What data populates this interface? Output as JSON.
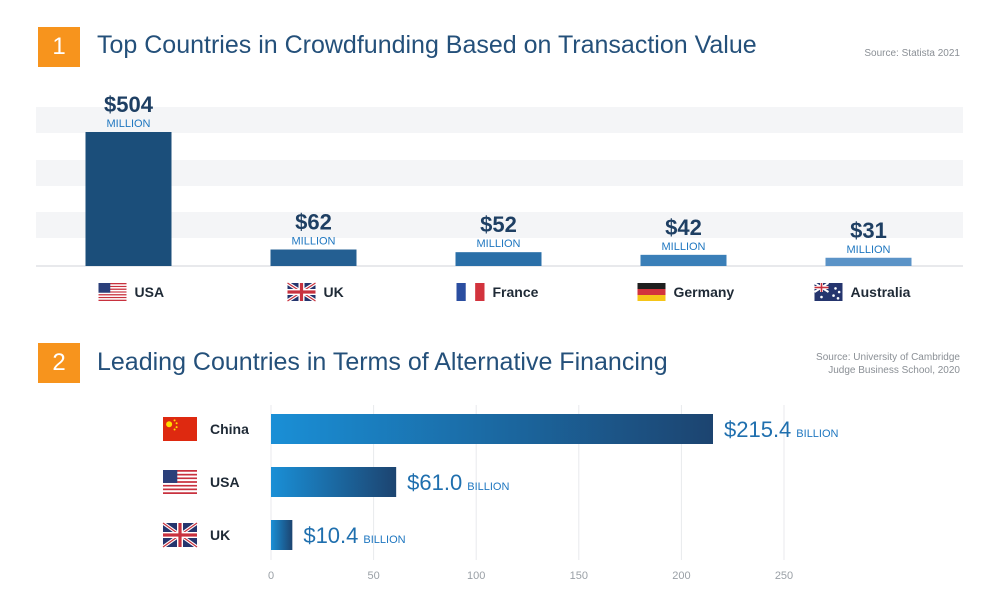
{
  "section1": {
    "number": "1",
    "title": "Top Countries in Crowdfunding Based on Transaction Value",
    "source": "Source: Statista 2021"
  },
  "section2": {
    "number": "2",
    "title": "Leading Countries in Terms of Alternative Financing",
    "source_lines": [
      "Source: University of Cambridge",
      "Judge Business School, 2020"
    ]
  },
  "colors": {
    "accent_orange": "#f7941d",
    "title_blue": "#24507a",
    "bar_dark": "#1b4e7a",
    "bar_mid": "#2a6fa8",
    "bar_light": "#5b93c7",
    "label_blue": "#1f77c0"
  },
  "chart_data": [
    {
      "type": "bar",
      "title": "Top Countries in Crowdfunding Based on Transaction Value",
      "categories": [
        "USA",
        "UK",
        "France",
        "Germany",
        "Australia"
      ],
      "values": [
        504,
        62,
        52,
        42,
        31
      ],
      "value_labels": [
        "$504",
        "$62",
        "$52",
        "$42",
        "$31"
      ],
      "unit_label": "MILLION",
      "flag_icons": [
        "usa-flag-icon",
        "uk-flag-icon",
        "france-flag-icon",
        "germany-flag-icon",
        "australia-flag-icon"
      ],
      "ylim": [
        0,
        504
      ],
      "grid": true
    },
    {
      "type": "bar",
      "orientation": "horizontal",
      "title": "Leading Countries in Terms of Alternative Financing",
      "categories": [
        "China",
        "USA",
        "UK"
      ],
      "values": [
        215.4,
        61.0,
        10.4
      ],
      "value_labels": [
        "$215.4",
        "$61.0",
        "$10.4"
      ],
      "unit_label": "BILLION",
      "flag_icons": [
        "china-flag-icon",
        "usa-flag-icon",
        "uk-flag-icon"
      ],
      "xlim": [
        0,
        250
      ],
      "xticks": [
        "0",
        "50",
        "100",
        "150",
        "200",
        "250"
      ],
      "grid": true
    }
  ]
}
